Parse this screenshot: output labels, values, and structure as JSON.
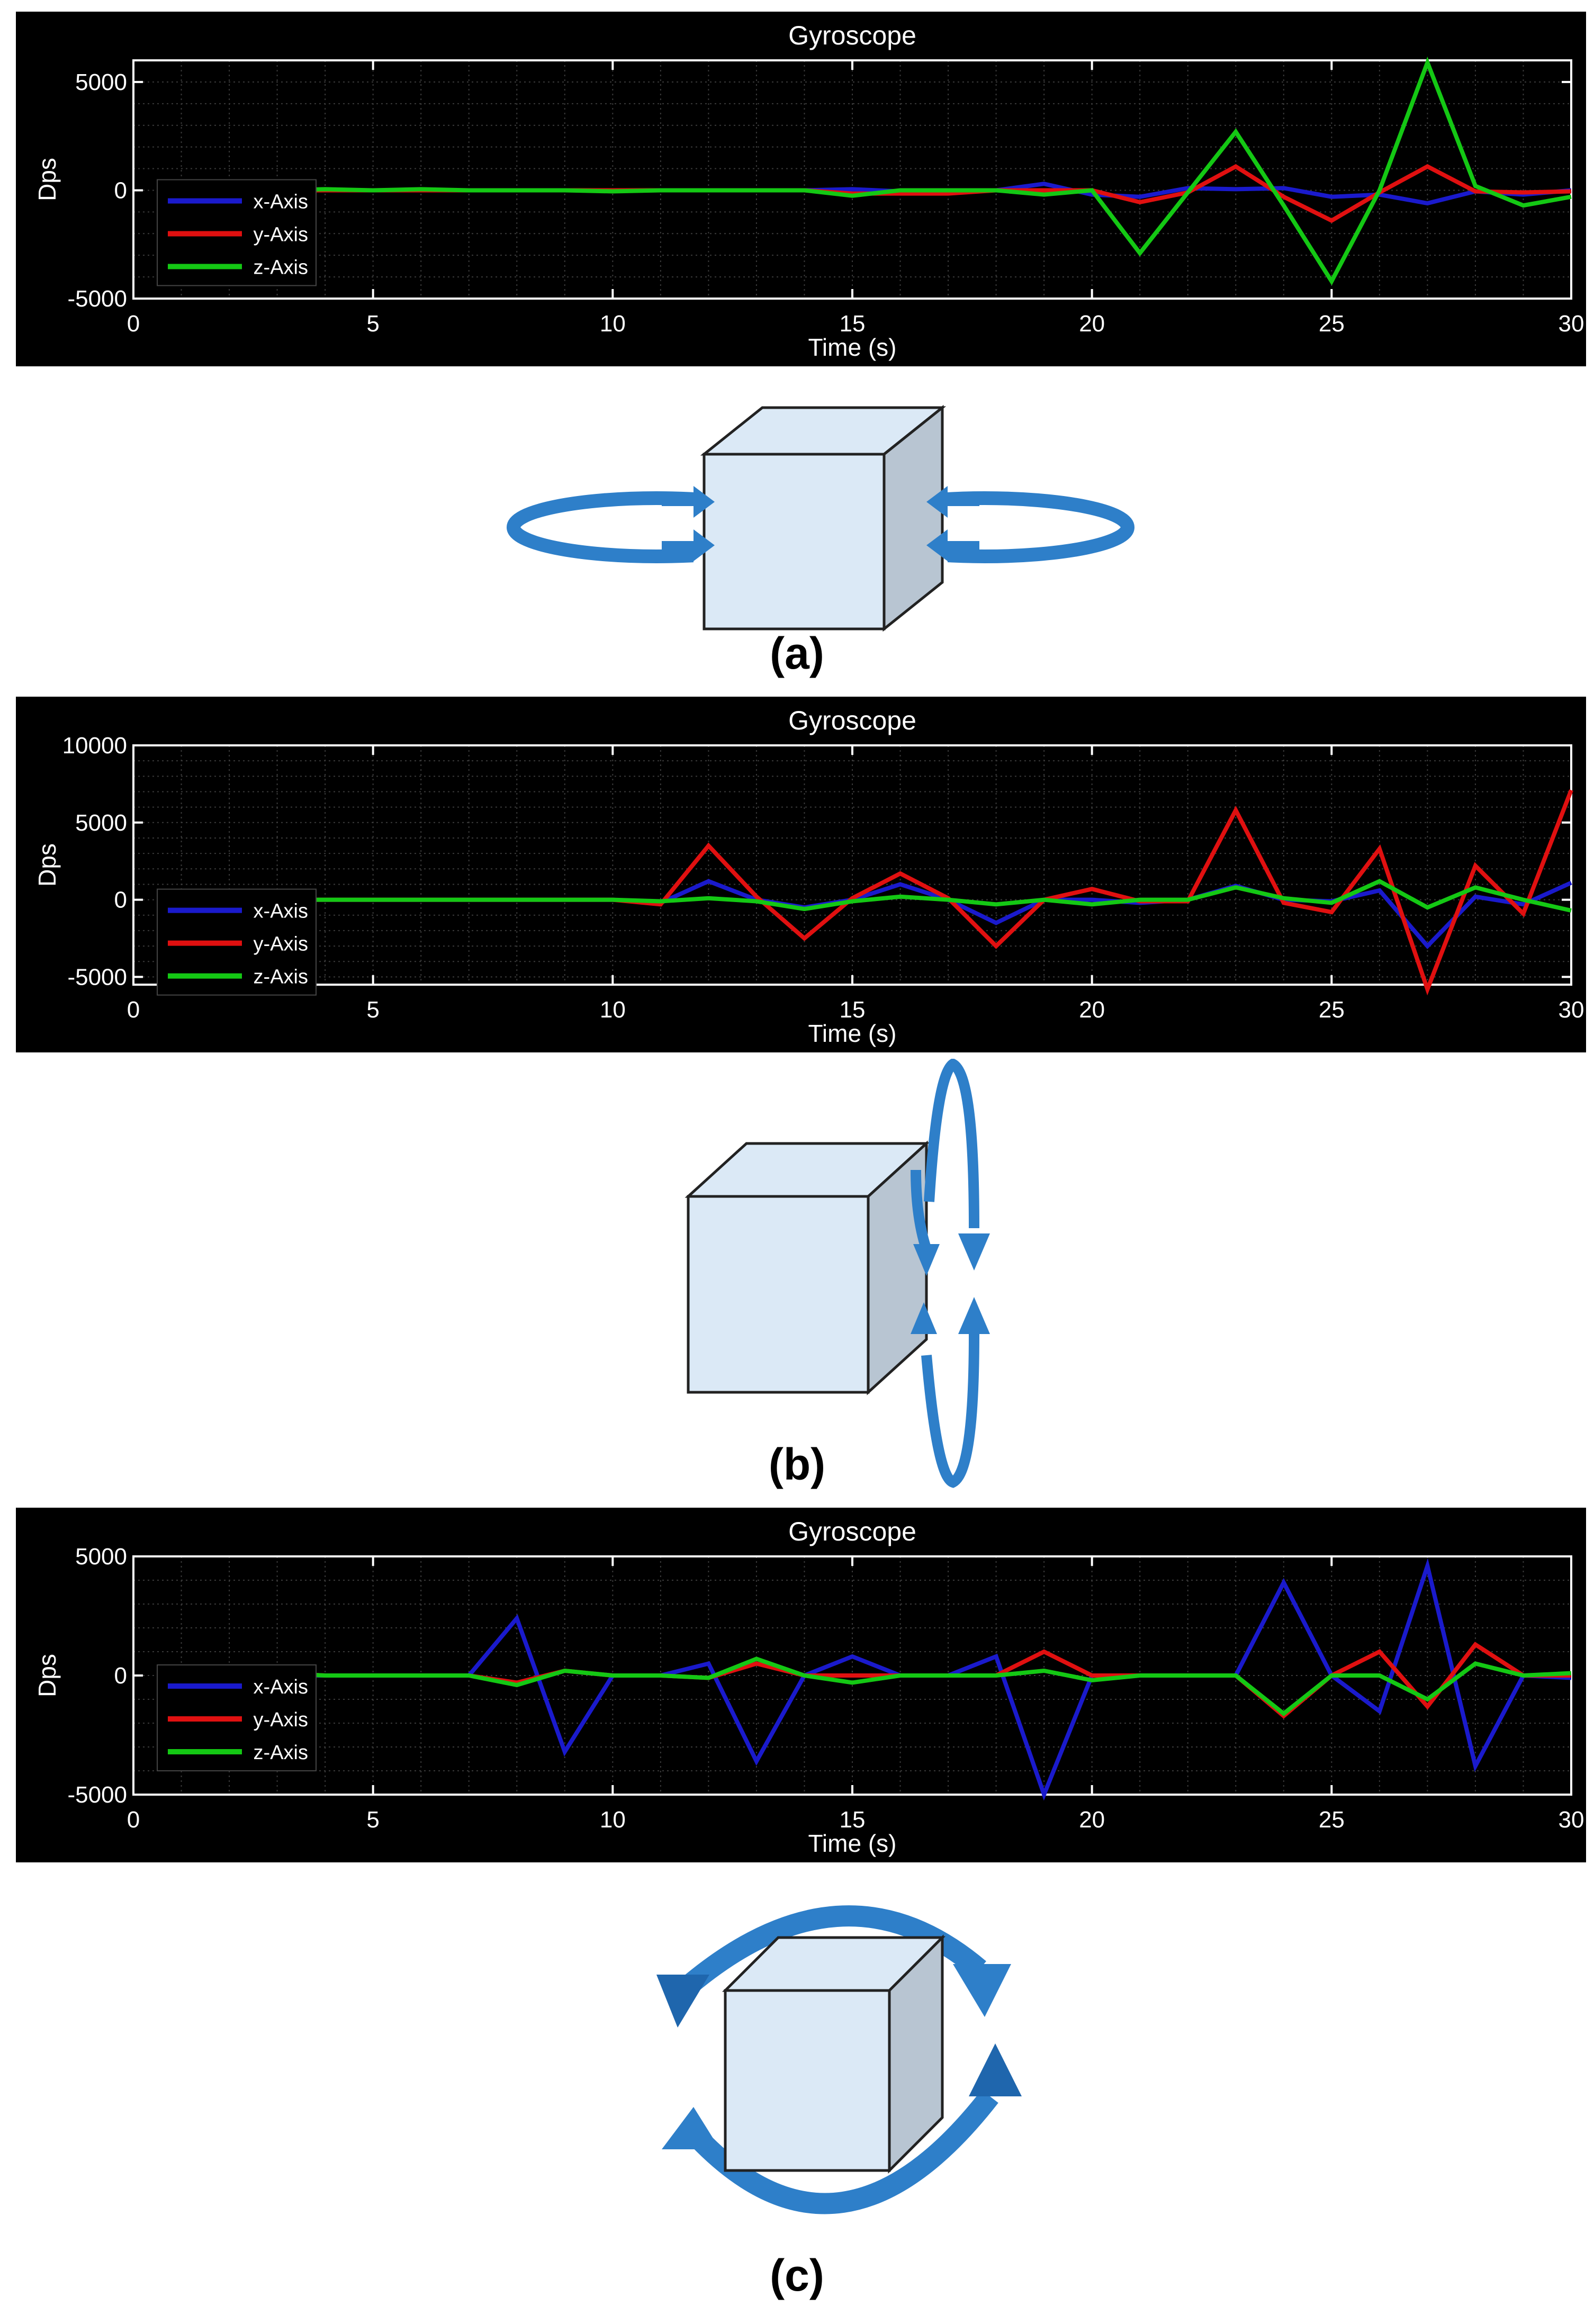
{
  "colors": {
    "x_axis": "#1a1acc",
    "y_axis": "#e01010",
    "z_axis": "#14c814",
    "panel_bg": "#000000",
    "cube_face": "#dbe9f6",
    "cube_side": "#b8c5d2",
    "arrow": "#2e7fc9"
  },
  "panels": [
    {
      "label": "(a)",
      "chart_data": {
        "type": "line",
        "title": "Gyroscope",
        "xlabel": "Time (s)",
        "ylabel": "Dps",
        "xlim": [
          0,
          30
        ],
        "ylim": [
          -5000,
          6000
        ],
        "xticks": [
          0,
          5,
          10,
          15,
          20,
          25,
          30
        ],
        "yticks": [
          -5000,
          0,
          5000
        ],
        "grid": true,
        "legend": "left",
        "x": [
          1,
          2,
          3,
          4,
          5,
          6,
          7,
          8,
          9,
          10,
          11,
          12,
          13,
          14,
          15,
          16,
          17,
          18,
          19,
          20,
          21,
          22,
          23,
          24,
          25,
          26,
          27,
          28,
          29,
          30
        ],
        "series": [
          {
            "name": "x-Axis",
            "values": [
              0,
              0,
              0,
              0,
              0,
              0,
              0,
              0,
              0,
              0,
              0,
              0,
              0,
              0,
              50,
              -50,
              0,
              0,
              300,
              -200,
              -300,
              100,
              50,
              100,
              -300,
              -200,
              -600,
              -50,
              -200,
              0
            ]
          },
          {
            "name": "y-Axis",
            "values": [
              0,
              0,
              0,
              0,
              0,
              0,
              0,
              0,
              0,
              0,
              0,
              0,
              0,
              0,
              -150,
              -150,
              -150,
              0,
              0,
              0,
              -550,
              -100,
              1100,
              -300,
              -1400,
              -100,
              1100,
              -50,
              -100,
              -50
            ]
          },
          {
            "name": "z-Axis",
            "values": [
              0,
              0,
              0,
              50,
              0,
              50,
              0,
              0,
              0,
              -50,
              0,
              0,
              0,
              0,
              -250,
              0,
              0,
              0,
              -200,
              0,
              -2900,
              -100,
              2700,
              -700,
              -4200,
              0,
              5900,
              200,
              -700,
              -300
            ]
          }
        ]
      }
    },
    {
      "label": "(b)",
      "chart_data": {
        "type": "line",
        "title": "Gyroscope",
        "xlabel": "Time (s)",
        "ylabel": "Dps",
        "xlim": [
          0,
          30
        ],
        "ylim": [
          -5500,
          10000
        ],
        "xticks": [
          0,
          5,
          10,
          15,
          20,
          25,
          30
        ],
        "yticks": [
          -5000,
          0,
          5000,
          10000
        ],
        "grid": true,
        "legend": "left",
        "x": [
          1,
          2,
          3,
          4,
          5,
          6,
          7,
          8,
          9,
          10,
          11,
          12,
          13,
          14,
          15,
          16,
          17,
          18,
          19,
          20,
          21,
          22,
          23,
          24,
          25,
          26,
          27,
          28,
          29,
          30
        ],
        "series": [
          {
            "name": "x-Axis",
            "values": [
              0,
              0,
              0,
              0,
              0,
              0,
              0,
              0,
              0,
              0,
              -200,
              1200,
              0,
              -500,
              0,
              1000,
              0,
              -1500,
              0,
              0,
              -200,
              0,
              900,
              0,
              -100,
              600,
              -3000,
              200,
              -300,
              1100
            ]
          },
          {
            "name": "y-Axis",
            "values": [
              0,
              0,
              0,
              0,
              0,
              0,
              0,
              0,
              0,
              0,
              -300,
              3500,
              200,
              -2500,
              100,
              1700,
              100,
              -3000,
              0,
              700,
              -100,
              -100,
              5800,
              -200,
              -800,
              3300,
              -5800,
              2200,
              -900,
              7100
            ]
          },
          {
            "name": "z-Axis",
            "values": [
              0,
              0,
              0,
              0,
              0,
              0,
              0,
              0,
              0,
              0,
              -100,
              100,
              -100,
              -600,
              -100,
              200,
              0,
              -300,
              0,
              -300,
              0,
              0,
              800,
              100,
              -200,
              1200,
              -500,
              800,
              0,
              -700
            ]
          }
        ]
      }
    },
    {
      "label": "(c)",
      "chart_data": {
        "type": "line",
        "title": "Gyroscope",
        "xlabel": "Time (s)",
        "ylabel": "Dps",
        "xlim": [
          0,
          30
        ],
        "ylim": [
          -5000,
          5000
        ],
        "xticks": [
          0,
          5,
          10,
          15,
          20,
          25,
          30
        ],
        "yticks": [
          -5000,
          0,
          5000
        ],
        "grid": true,
        "legend": "left",
        "x": [
          1,
          2,
          3,
          4,
          5,
          6,
          7,
          8,
          9,
          10,
          11,
          12,
          13,
          14,
          15,
          16,
          17,
          18,
          19,
          20,
          21,
          22,
          23,
          24,
          25,
          26,
          27,
          28,
          29,
          30
        ],
        "series": [
          {
            "name": "x-Axis",
            "values": [
              0,
              0,
              0,
              0,
              0,
              0,
              0,
              2400,
              -3200,
              0,
              0,
              500,
              -3600,
              0,
              800,
              0,
              0,
              800,
              -5000,
              0,
              0,
              0,
              0,
              3900,
              0,
              -1500,
              4600,
              -3800,
              0,
              -100
            ]
          },
          {
            "name": "y-Axis",
            "values": [
              0,
              0,
              100,
              0,
              0,
              0,
              0,
              -300,
              200,
              0,
              0,
              -100,
              500,
              0,
              0,
              0,
              0,
              0,
              1000,
              0,
              0,
              0,
              0,
              -1700,
              0,
              1000,
              -1300,
              1300,
              0,
              0
            ]
          },
          {
            "name": "z-Axis",
            "values": [
              0,
              0,
              100,
              0,
              0,
              0,
              0,
              -400,
              200,
              0,
              0,
              -100,
              700,
              0,
              -300,
              0,
              0,
              0,
              200,
              -200,
              0,
              0,
              0,
              -1600,
              0,
              0,
              -1000,
              500,
              0,
              100
            ]
          }
        ]
      }
    }
  ]
}
